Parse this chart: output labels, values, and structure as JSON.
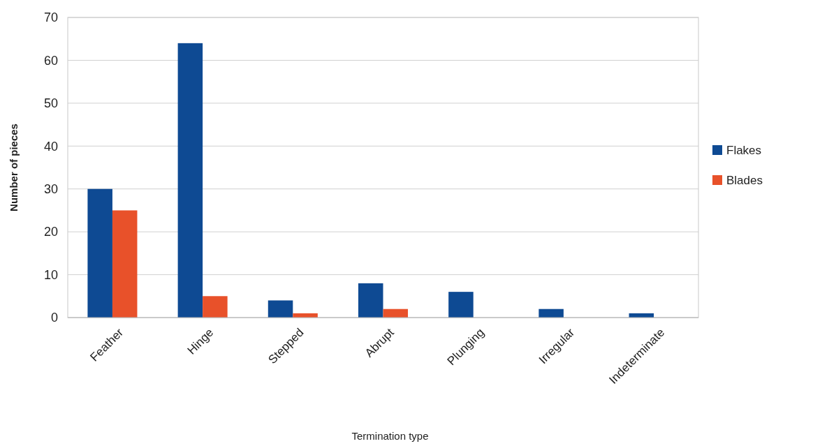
{
  "chart_data": {
    "type": "bar",
    "xlabel": "Termination type",
    "ylabel": "Number of pieces",
    "categories": [
      "Feather",
      "Hinge",
      "Stepped",
      "Abrupt",
      "Plunging",
      "Irregular",
      "Indeterminate"
    ],
    "series": [
      {
        "name": "Flakes",
        "color": "#0e4a93",
        "values": [
          30,
          64,
          4,
          8,
          6,
          2,
          1
        ]
      },
      {
        "name": "Blades",
        "color": "#e8512a",
        "values": [
          25,
          5,
          1,
          2,
          0,
          0,
          0
        ]
      }
    ],
    "ylim": [
      0,
      70
    ],
    "yticks": [
      0,
      10,
      20,
      30,
      40,
      50,
      60,
      70
    ],
    "grid": "y",
    "legend": "right"
  }
}
